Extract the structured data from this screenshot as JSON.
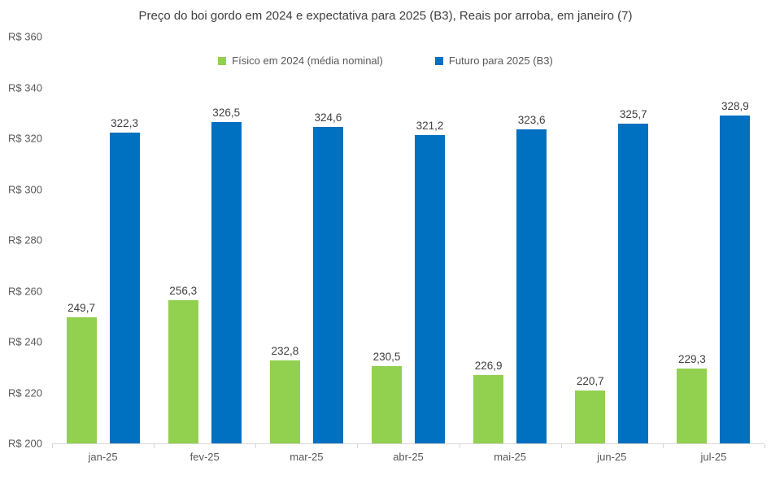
{
  "chart_data": {
    "type": "bar",
    "title": "Preço do boi gordo em 2024 e expectativa para 2025 (B3), Reais por arroba, em janeiro (7)",
    "categories": [
      "jan-25",
      "fev-25",
      "mar-25",
      "abr-25",
      "mai-25",
      "jun-25",
      "jul-25"
    ],
    "series": [
      {
        "name": "Físico em 2024 (média nominal)",
        "color": "#92D050",
        "values": [
          249.7,
          256.3,
          232.8,
          230.5,
          226.9,
          220.7,
          229.3
        ]
      },
      {
        "name": "Futuro para 2025 (B3)",
        "color": "#0070C0",
        "values": [
          322.3,
          326.5,
          324.6,
          321.2,
          323.6,
          325.7,
          328.9
        ]
      }
    ],
    "ylim": [
      200,
      360
    ],
    "ytick_step": 20,
    "ytick_prefix": "R$ ",
    "value_label_decimal_separator": ",",
    "grid": false,
    "legend_position": "top",
    "data_labels": true
  },
  "colors": {
    "background": "#ffffff",
    "title_text": "#3f3f3f",
    "axis_text": "#595959",
    "value_label_text": "#404040",
    "axis_line": "#d6d6d6"
  }
}
